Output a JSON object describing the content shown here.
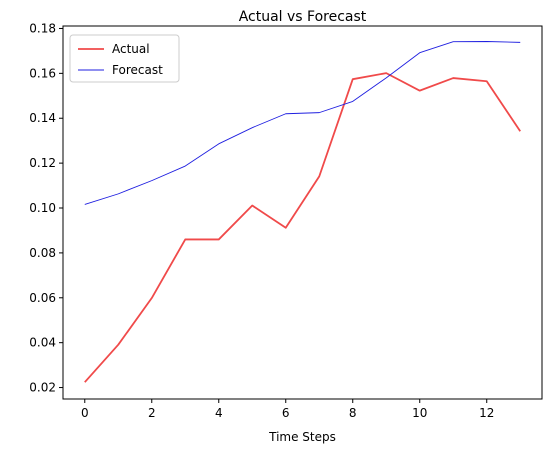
{
  "chart_data": {
    "type": "line",
    "title": "Actual vs Forecast",
    "xlabel": "Time Steps",
    "ylabel": "",
    "x": [
      0,
      1,
      2,
      3,
      4,
      5,
      6,
      7,
      8,
      9,
      10,
      11,
      12,
      13
    ],
    "xlim": [
      -0.65,
      13.65
    ],
    "ylim": [
      0.0149,
      0.1811
    ],
    "xticks": [
      0,
      2,
      4,
      6,
      8,
      10,
      12
    ],
    "yticks": [
      0.02,
      0.04,
      0.06,
      0.08,
      0.1,
      0.12,
      0.14,
      0.16,
      0.18
    ],
    "ytick_labels": [
      "0.02",
      "0.04",
      "0.06",
      "0.08",
      "0.10",
      "0.12",
      "0.14",
      "0.16",
      "0.18"
    ],
    "grid": false,
    "legend": "top-left",
    "series": [
      {
        "name": "Actual",
        "color": "#f04a4a",
        "values": [
          0.0224,
          0.0391,
          0.0599,
          0.086,
          0.086,
          0.1011,
          0.0912,
          0.1141,
          0.1574,
          0.1601,
          0.1523,
          0.1579,
          0.1565,
          0.1342
        ]
      },
      {
        "name": "Forecast",
        "color": "#1f1fe0",
        "values": [
          0.1016,
          0.1063,
          0.1122,
          0.1187,
          0.1286,
          0.1358,
          0.142,
          0.1425,
          0.1475,
          0.158,
          0.1692,
          0.1741,
          0.1742,
          0.1738
        ]
      }
    ]
  }
}
